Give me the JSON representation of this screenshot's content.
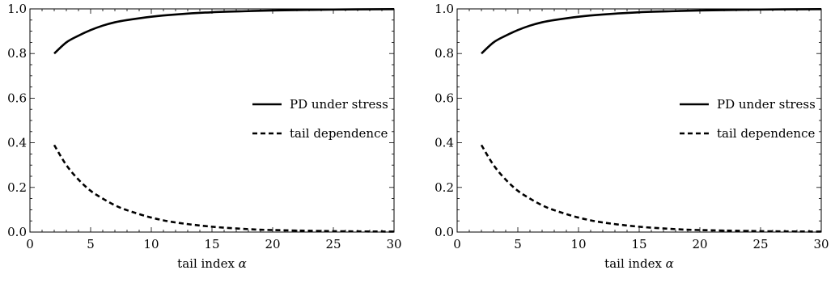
{
  "chart_data": [
    {
      "type": "line",
      "title": "",
      "xlabel": "tail index α",
      "ylabel": "",
      "xlim": [
        0,
        30
      ],
      "ylim": [
        0.0,
        1.0
      ],
      "x_ticks": [
        0,
        5,
        10,
        15,
        20,
        25,
        30
      ],
      "y_ticks": [
        0.0,
        0.2,
        0.4,
        0.6,
        0.8,
        1.0
      ],
      "x_tick_labels": [
        "0",
        "5",
        "10",
        "15",
        "20",
        "25",
        "30"
      ],
      "y_tick_labels": [
        "0.0",
        "0.2",
        "0.4",
        "0.6",
        "0.8",
        "1.0"
      ],
      "grid": false,
      "legend": "center-right",
      "x": [
        2,
        3,
        4,
        5,
        6,
        7,
        8,
        10,
        12,
        15,
        18,
        20,
        25,
        30
      ],
      "series": [
        {
          "name": "PD under stress",
          "style": "solid",
          "color": "#000000",
          "values": [
            0.8,
            0.85,
            0.88,
            0.905,
            0.925,
            0.94,
            0.95,
            0.965,
            0.975,
            0.985,
            0.99,
            0.993,
            0.997,
            0.999
          ]
        },
        {
          "name": "tail dependence",
          "style": "dashed",
          "color": "#000000",
          "values": [
            0.39,
            0.3,
            0.235,
            0.185,
            0.15,
            0.12,
            0.098,
            0.065,
            0.043,
            0.024,
            0.013,
            0.009,
            0.004,
            0.002
          ]
        }
      ]
    },
    {
      "type": "line",
      "title": "",
      "xlabel": "tail index α",
      "ylabel": "",
      "xlim": [
        0,
        30
      ],
      "ylim": [
        0.0,
        1.0
      ],
      "x_ticks": [
        0,
        5,
        10,
        15,
        20,
        25,
        30
      ],
      "y_ticks": [
        0.0,
        0.2,
        0.4,
        0.6,
        0.8,
        1.0
      ],
      "x_tick_labels": [
        "0",
        "5",
        "10",
        "15",
        "20",
        "25",
        "30"
      ],
      "y_tick_labels": [
        "0.0",
        "0.2",
        "0.4",
        "0.6",
        "0.8",
        "1.0"
      ],
      "grid": false,
      "legend": "center-right",
      "x": [
        2,
        3,
        4,
        5,
        6,
        7,
        8,
        10,
        12,
        15,
        18,
        20,
        25,
        30
      ],
      "series": [
        {
          "name": "PD under stress",
          "style": "solid",
          "color": "#000000",
          "values": [
            0.8,
            0.85,
            0.88,
            0.905,
            0.925,
            0.94,
            0.95,
            0.965,
            0.975,
            0.985,
            0.99,
            0.993,
            0.997,
            0.999
          ]
        },
        {
          "name": "tail dependence",
          "style": "dashed",
          "color": "#000000",
          "values": [
            0.39,
            0.3,
            0.235,
            0.185,
            0.15,
            0.12,
            0.098,
            0.065,
            0.043,
            0.024,
            0.013,
            0.009,
            0.004,
            0.002
          ]
        }
      ]
    }
  ]
}
